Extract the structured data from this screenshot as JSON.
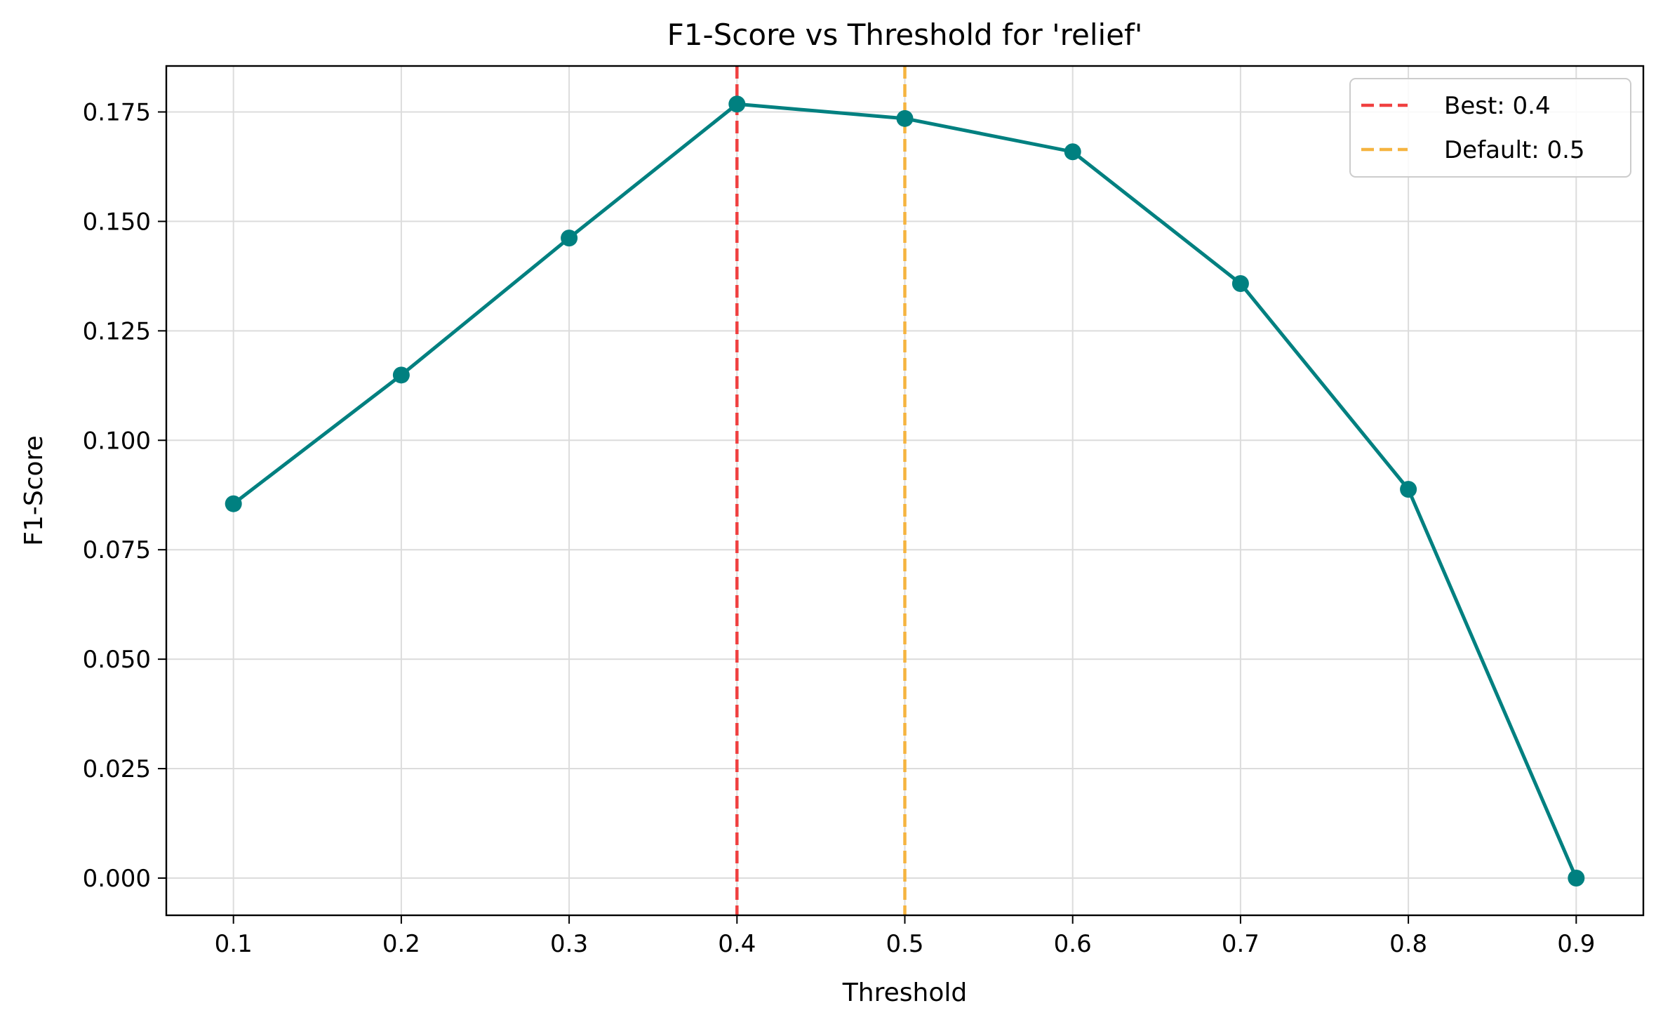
{
  "chart_data": {
    "type": "line",
    "title": "F1-Score vs Threshold for 'relief'",
    "xlabel": "Threshold",
    "ylabel": "F1-Score",
    "x": [
      0.1,
      0.2,
      0.3,
      0.4,
      0.5,
      0.6,
      0.7,
      0.8,
      0.9
    ],
    "series": [
      {
        "values": [
          0.0855,
          0.1149,
          0.1462,
          0.1768,
          0.1735,
          0.1659,
          0.1358,
          0.0888,
          0.0
        ],
        "color": "#008080"
      }
    ],
    "xlim": [
      0.06,
      0.94
    ],
    "ylim": [
      -0.0085,
      0.1855
    ],
    "x_ticks": [
      0.1,
      0.2,
      0.3,
      0.4,
      0.5,
      0.6,
      0.7,
      0.8,
      0.9
    ],
    "x_tick_labels": [
      "0.1",
      "0.2",
      "0.3",
      "0.4",
      "0.5",
      "0.6",
      "0.7",
      "0.8",
      "0.9"
    ],
    "y_ticks": [
      0.0,
      0.025,
      0.05,
      0.075,
      0.1,
      0.125,
      0.15,
      0.175
    ],
    "y_tick_labels": [
      "0.000",
      "0.025",
      "0.050",
      "0.075",
      "0.100",
      "0.125",
      "0.150",
      "0.175"
    ],
    "grid": true,
    "reference_lines": [
      {
        "x": 0.4,
        "label": "Best: 0.4",
        "color": "#f04040",
        "style": "dashed"
      },
      {
        "x": 0.5,
        "label": "Default: 0.5",
        "color": "#f5b440",
        "style": "dashed"
      }
    ],
    "legend_position": "top-right"
  }
}
